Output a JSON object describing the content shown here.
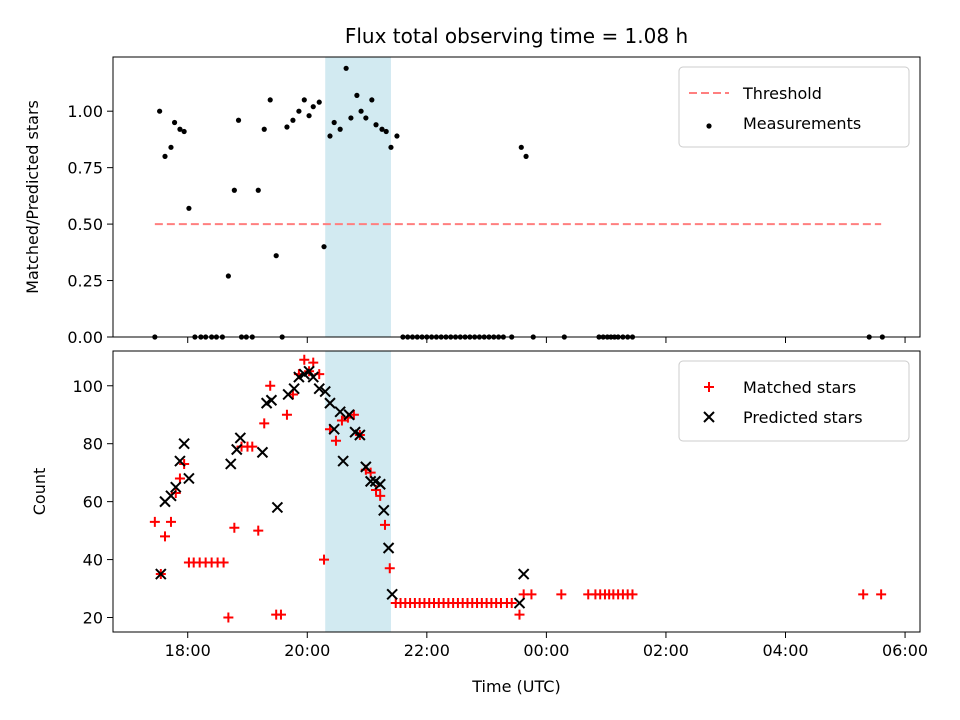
{
  "chart_data": [
    {
      "type": "scatter",
      "title": "Flux total observing time = 1.08 h",
      "xlabel": "",
      "ylabel": "Matched/Predicted stars",
      "xlim_hours": [
        16.75,
        30.25
      ],
      "ylim": [
        0,
        1.24
      ],
      "yticks": [
        0.0,
        0.25,
        0.5,
        0.75,
        1.0
      ],
      "ytick_labels": [
        "0.00",
        "0.25",
        "0.50",
        "0.75",
        "1.00"
      ],
      "shaded_span_hours": [
        20.3,
        21.4
      ],
      "shade_color": "#add8e6",
      "legend_position": "upper right",
      "threshold": {
        "name": "Threshold",
        "y": 0.5,
        "x_range_hours": [
          17.45,
          29.6
        ],
        "color": "#ff7f7f",
        "style": "dashed"
      },
      "series": [
        {
          "name": "Measurements",
          "color": "#000000",
          "marker": "dot",
          "points": [
            [
              17.45,
              0
            ],
            [
              17.53,
              1.0
            ],
            [
              17.62,
              0.8
            ],
            [
              17.72,
              0.84
            ],
            [
              17.78,
              0.95
            ],
            [
              17.87,
              0.92
            ],
            [
              17.94,
              0.91
            ],
            [
              18.02,
              0.57
            ],
            [
              18.12,
              0
            ],
            [
              18.22,
              0
            ],
            [
              18.3,
              0
            ],
            [
              18.4,
              0
            ],
            [
              18.48,
              0
            ],
            [
              18.58,
              0
            ],
            [
              18.68,
              0.27
            ],
            [
              18.78,
              0.65
            ],
            [
              18.85,
              0.96
            ],
            [
              18.9,
              0
            ],
            [
              18.98,
              0
            ],
            [
              19.08,
              0
            ],
            [
              19.18,
              0.65
            ],
            [
              19.28,
              0.92
            ],
            [
              19.38,
              1.05
            ],
            [
              19.48,
              0.36
            ],
            [
              19.58,
              0
            ],
            [
              19.66,
              0.93
            ],
            [
              19.76,
              0.96
            ],
            [
              19.86,
              1.0
            ],
            [
              19.95,
              1.05
            ],
            [
              20.03,
              0.98
            ],
            [
              20.1,
              1.02
            ],
            [
              20.2,
              1.04
            ],
            [
              20.28,
              0.4
            ],
            [
              20.38,
              0.89
            ],
            [
              20.45,
              0.95
            ],
            [
              20.55,
              0.92
            ],
            [
              20.65,
              1.19
            ],
            [
              20.73,
              0.97
            ],
            [
              20.83,
              1.07
            ],
            [
              20.9,
              1.0
            ],
            [
              20.98,
              0.97
            ],
            [
              21.08,
              1.05
            ],
            [
              21.15,
              0.94
            ],
            [
              21.25,
              0.92
            ],
            [
              21.32,
              0.91
            ],
            [
              21.4,
              0.84
            ],
            [
              21.5,
              0.89
            ],
            [
              21.6,
              0
            ],
            [
              21.68,
              0
            ],
            [
              21.76,
              0
            ],
            [
              21.84,
              0
            ],
            [
              21.92,
              0
            ],
            [
              22.0,
              0
            ],
            [
              22.08,
              0
            ],
            [
              22.16,
              0
            ],
            [
              22.24,
              0
            ],
            [
              22.32,
              0
            ],
            [
              22.4,
              0
            ],
            [
              22.48,
              0
            ],
            [
              22.56,
              0
            ],
            [
              22.64,
              0
            ],
            [
              22.72,
              0
            ],
            [
              22.8,
              0
            ],
            [
              22.88,
              0
            ],
            [
              22.96,
              0
            ],
            [
              23.04,
              0
            ],
            [
              23.12,
              0
            ],
            [
              23.2,
              0
            ],
            [
              23.28,
              0
            ],
            [
              23.42,
              0
            ],
            [
              23.58,
              0.84
            ],
            [
              23.66,
              0.8
            ],
            [
              23.78,
              0
            ],
            [
              24.3,
              0
            ],
            [
              24.88,
              0
            ],
            [
              24.95,
              0
            ],
            [
              25.02,
              0
            ],
            [
              25.08,
              0
            ],
            [
              25.14,
              0
            ],
            [
              25.2,
              0
            ],
            [
              25.28,
              0
            ],
            [
              25.36,
              0
            ],
            [
              25.44,
              0
            ],
            [
              29.4,
              0
            ],
            [
              29.62,
              0
            ]
          ]
        }
      ]
    },
    {
      "type": "scatter",
      "title": "",
      "xlabel": "Time (UTC)",
      "ylabel": "Count",
      "xlim_hours": [
        16.75,
        30.25
      ],
      "ylim": [
        15,
        112
      ],
      "yticks": [
        20,
        40,
        60,
        80,
        100
      ],
      "ytick_labels": [
        "20",
        "40",
        "60",
        "80",
        "100"
      ],
      "xticks_hours": [
        18,
        20,
        22,
        24,
        26,
        28,
        30
      ],
      "xtick_labels": [
        "18:00",
        "20:00",
        "22:00",
        "00:00",
        "02:00",
        "04:00",
        "06:00"
      ],
      "shaded_span_hours": [
        20.3,
        21.4
      ],
      "shade_color": "#add8e6",
      "legend_position": "upper right",
      "series": [
        {
          "name": "Matched stars",
          "color": "#ff0000",
          "marker": "plus",
          "points": [
            [
              17.45,
              53
            ],
            [
              17.55,
              35
            ],
            [
              17.62,
              48
            ],
            [
              17.72,
              53
            ],
            [
              17.8,
              63
            ],
            [
              17.87,
              68
            ],
            [
              17.94,
              73
            ],
            [
              18.02,
              39
            ],
            [
              18.1,
              39
            ],
            [
              18.2,
              39
            ],
            [
              18.3,
              39
            ],
            [
              18.4,
              39
            ],
            [
              18.5,
              39
            ],
            [
              18.6,
              39
            ],
            [
              18.68,
              20
            ],
            [
              18.78,
              51
            ],
            [
              18.9,
              79
            ],
            [
              19.0,
              79
            ],
            [
              19.08,
              79
            ],
            [
              19.18,
              50
            ],
            [
              19.28,
              87
            ],
            [
              19.38,
              100
            ],
            [
              19.48,
              21
            ],
            [
              19.56,
              21
            ],
            [
              19.66,
              90
            ],
            [
              19.76,
              97
            ],
            [
              19.86,
              104
            ],
            [
              19.95,
              109
            ],
            [
              20.03,
              105
            ],
            [
              20.1,
              108
            ],
            [
              20.2,
              104
            ],
            [
              20.28,
              40
            ],
            [
              20.38,
              85
            ],
            [
              20.48,
              81
            ],
            [
              20.58,
              88
            ],
            [
              20.68,
              89
            ],
            [
              20.78,
              90
            ],
            [
              20.88,
              83
            ],
            [
              20.98,
              71
            ],
            [
              21.06,
              70
            ],
            [
              21.15,
              64
            ],
            [
              21.22,
              62
            ],
            [
              21.3,
              52
            ],
            [
              21.38,
              37
            ],
            [
              21.48,
              25
            ],
            [
              21.56,
              25
            ],
            [
              21.64,
              25
            ],
            [
              21.72,
              25
            ],
            [
              21.8,
              25
            ],
            [
              21.88,
              25
            ],
            [
              21.96,
              25
            ],
            [
              22.04,
              25
            ],
            [
              22.12,
              25
            ],
            [
              22.2,
              25
            ],
            [
              22.28,
              25
            ],
            [
              22.36,
              25
            ],
            [
              22.44,
              25
            ],
            [
              22.52,
              25
            ],
            [
              22.6,
              25
            ],
            [
              22.68,
              25
            ],
            [
              22.76,
              25
            ],
            [
              22.84,
              25
            ],
            [
              22.92,
              25
            ],
            [
              23.0,
              25
            ],
            [
              23.08,
              25
            ],
            [
              23.16,
              25
            ],
            [
              23.24,
              25
            ],
            [
              23.34,
              25
            ],
            [
              23.42,
              25
            ],
            [
              23.55,
              21
            ],
            [
              23.62,
              28
            ],
            [
              23.75,
              28
            ],
            [
              24.25,
              28
            ],
            [
              24.7,
              28
            ],
            [
              24.82,
              28
            ],
            [
              24.9,
              28
            ],
            [
              24.98,
              28
            ],
            [
              25.05,
              28
            ],
            [
              25.12,
              28
            ],
            [
              25.2,
              28
            ],
            [
              25.28,
              28
            ],
            [
              25.36,
              28
            ],
            [
              25.44,
              28
            ],
            [
              29.3,
              28
            ],
            [
              29.6,
              28
            ]
          ]
        },
        {
          "name": "Predicted stars",
          "color": "#000000",
          "marker": "x",
          "points": [
            [
              17.55,
              35
            ],
            [
              17.62,
              60
            ],
            [
              17.72,
              62
            ],
            [
              17.8,
              65
            ],
            [
              17.87,
              74
            ],
            [
              17.94,
              80
            ],
            [
              18.02,
              68
            ],
            [
              18.72,
              73
            ],
            [
              18.82,
              78
            ],
            [
              18.88,
              82
            ],
            [
              19.25,
              77
            ],
            [
              19.32,
              94
            ],
            [
              19.4,
              95
            ],
            [
              19.5,
              58
            ],
            [
              19.68,
              97
            ],
            [
              19.78,
              99
            ],
            [
              19.86,
              103
            ],
            [
              19.95,
              104
            ],
            [
              20.03,
              105
            ],
            [
              20.1,
              103
            ],
            [
              20.2,
              99
            ],
            [
              20.3,
              98
            ],
            [
              20.38,
              94
            ],
            [
              20.45,
              85
            ],
            [
              20.55,
              91
            ],
            [
              20.6,
              74
            ],
            [
              20.7,
              90
            ],
            [
              20.8,
              84
            ],
            [
              20.88,
              83
            ],
            [
              20.98,
              72
            ],
            [
              21.06,
              67
            ],
            [
              21.14,
              67
            ],
            [
              21.22,
              66
            ],
            [
              21.28,
              57
            ],
            [
              21.36,
              44
            ],
            [
              21.42,
              28
            ],
            [
              23.55,
              25
            ],
            [
              23.62,
              35
            ]
          ]
        }
      ]
    }
  ]
}
